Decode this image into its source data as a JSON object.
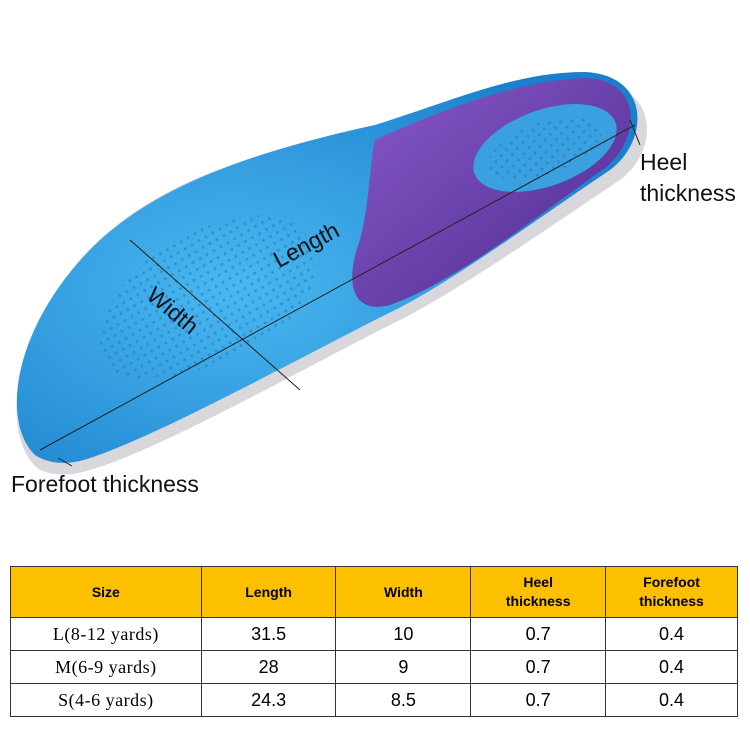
{
  "labels": {
    "heel": [
      "Heel",
      "thickness"
    ],
    "length": "Length",
    "width": "Width",
    "forefoot": "Forefoot thickness"
  },
  "colors": {
    "insole_blue": "#2a9fe0",
    "heel_purple": "#6a3aa8",
    "header": "#fcc000"
  },
  "table": {
    "headers": [
      [
        "Size"
      ],
      [
        "Length"
      ],
      [
        "Width"
      ],
      [
        "Heel",
        "thickness"
      ],
      [
        "Forefoot",
        "thickness"
      ]
    ],
    "rows": [
      [
        "L(8-12 yards)",
        "31.5",
        "10",
        "0.7",
        "0.4"
      ],
      [
        "M(6-9 yards)",
        "28",
        "9",
        "0.7",
        "0.4"
      ],
      [
        "S(4-6 yards)",
        "24.3",
        "8.5",
        "0.7",
        "0.4"
      ]
    ]
  }
}
